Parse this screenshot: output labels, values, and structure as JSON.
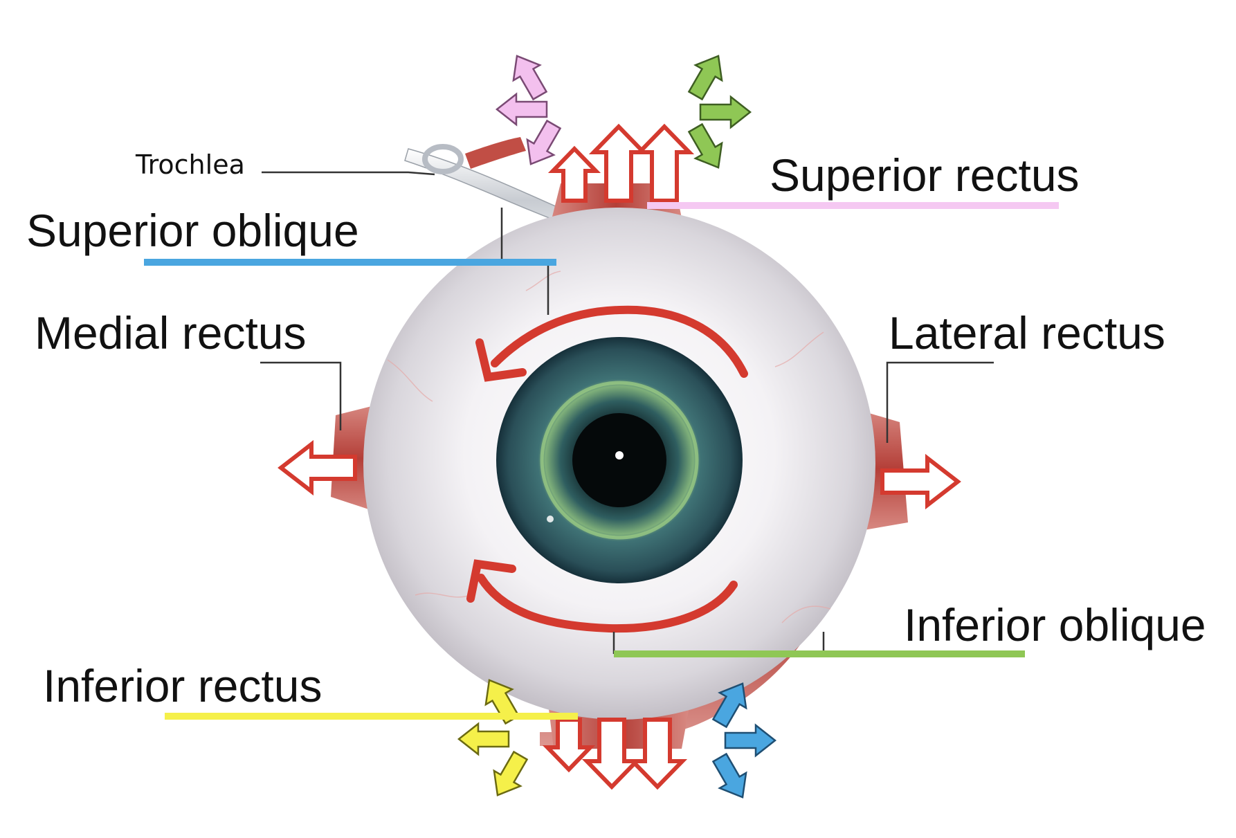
{
  "labels": {
    "trochlea": "Trochlea",
    "superior_oblique": "Superior oblique",
    "superior_rectus": "Superior rectus",
    "medial_rectus": "Medial rectus",
    "lateral_rectus": "Lateral rectus",
    "inferior_oblique": "Inferior oblique",
    "inferior_rectus": "Inferior rectus"
  },
  "colors": {
    "superior_oblique_bar": "#4aa6e0",
    "superior_rectus_bar": "#f5c8f2",
    "inferior_oblique_bar": "#8fc755",
    "inferior_rectus_bar": "#f5f04a",
    "muscle_arrows": "#d43a2f",
    "superior_rectus_action_arrows": "#f3c0ee",
    "superior_oblique_action_arrows": "#4aa6e0",
    "inferior_oblique_action_arrows": "#8fc755",
    "inferior_rectus_action_arrows": "#f5f04a",
    "iris": "#2d5a63",
    "muscle": "#b8453e"
  }
}
